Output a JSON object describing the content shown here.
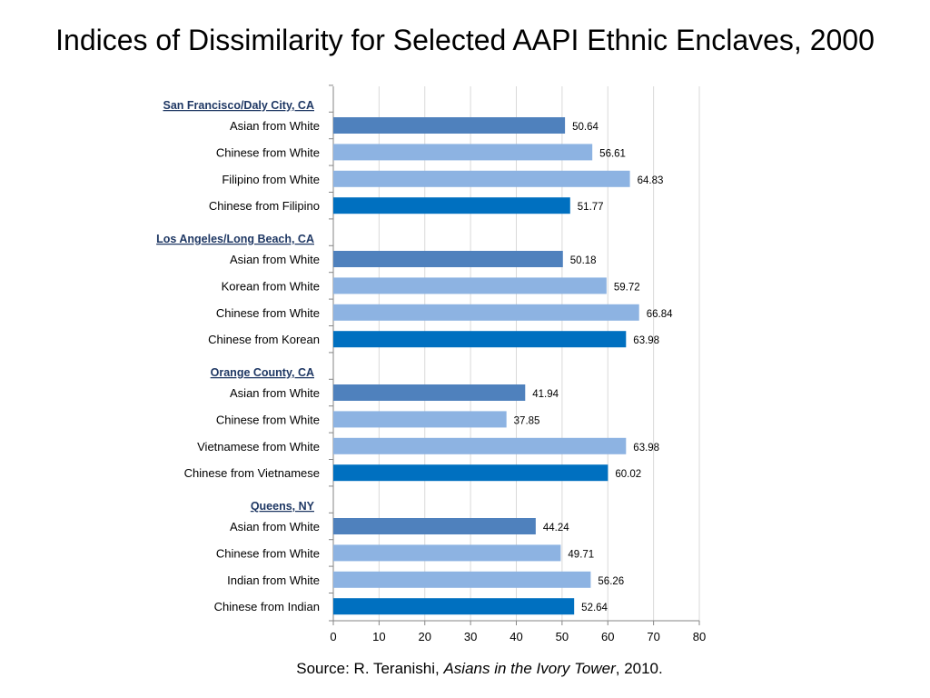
{
  "title": "Indices of Dissimilarity for Selected AAPI Ethnic Enclaves, 2000",
  "source": {
    "prefix": "Source: R. Teranishi, ",
    "book": "Asians in the Ivory Tower",
    "suffix": ", 2010."
  },
  "chart_data": {
    "type": "bar",
    "orientation": "horizontal",
    "title": "Indices of Dissimilarity for Selected AAPI Ethnic Enclaves, 2000",
    "xlim": [
      0,
      80
    ],
    "xticks": [
      0,
      10,
      20,
      30,
      40,
      50,
      60,
      70,
      80
    ],
    "grid": true,
    "data_labels": true,
    "colors": {
      "asian_from_white": "#4f81bd",
      "light": "#8db3e2",
      "dark": "#0070c0"
    },
    "groups": [
      {
        "name": "San Francisco/Daly City, CA",
        "bars": [
          {
            "label": "Asian from White",
            "value": 50.64,
            "value_text": "50.64",
            "color": "#4f81bd"
          },
          {
            "label": "Chinese from White",
            "value": 56.61,
            "value_text": "56.61",
            "color": "#8db3e2"
          },
          {
            "label": "Filipino from White",
            "value": 64.83,
            "value_text": "64.83",
            "color": "#8db3e2"
          },
          {
            "label": "Chinese from Filipino",
            "value": 51.77,
            "value_text": "51.77",
            "color": "#0070c0"
          }
        ]
      },
      {
        "name": "Los Angeles/Long Beach, CA",
        "bars": [
          {
            "label": "Asian from White",
            "value": 50.18,
            "value_text": "50.18",
            "color": "#4f81bd"
          },
          {
            "label": "Korean from White",
            "value": 59.72,
            "value_text": "59.72",
            "color": "#8db3e2"
          },
          {
            "label": "Chinese from White",
            "value": 66.84,
            "value_text": "66.84",
            "color": "#8db3e2"
          },
          {
            "label": "Chinese from Korean",
            "value": 63.98,
            "value_text": "63.98",
            "color": "#0070c0"
          }
        ]
      },
      {
        "name": "Orange County, CA",
        "bars": [
          {
            "label": "Asian from White",
            "value": 41.94,
            "value_text": "41.94",
            "color": "#4f81bd"
          },
          {
            "label": "Chinese from White",
            "value": 37.85,
            "value_text": "37.85",
            "color": "#8db3e2"
          },
          {
            "label": "Vietnamese from White",
            "value": 63.98,
            "value_text": "63.98",
            "color": "#8db3e2"
          },
          {
            "label": "Chinese from Vietnamese",
            "value": 60.02,
            "value_text": "60.02",
            "color": "#0070c0"
          }
        ]
      },
      {
        "name": "Queens, NY",
        "bars": [
          {
            "label": "Asian from White",
            "value": 44.24,
            "value_text": "44.24",
            "color": "#4f81bd"
          },
          {
            "label": "Chinese from White",
            "value": 49.71,
            "value_text": "49.71",
            "color": "#8db3e2"
          },
          {
            "label": "Indian from White",
            "value": 56.26,
            "value_text": "56.26",
            "color": "#8db3e2"
          },
          {
            "label": "Chinese from Indian",
            "value": 52.64,
            "value_text": "52.64",
            "color": "#0070c0"
          }
        ]
      }
    ]
  }
}
